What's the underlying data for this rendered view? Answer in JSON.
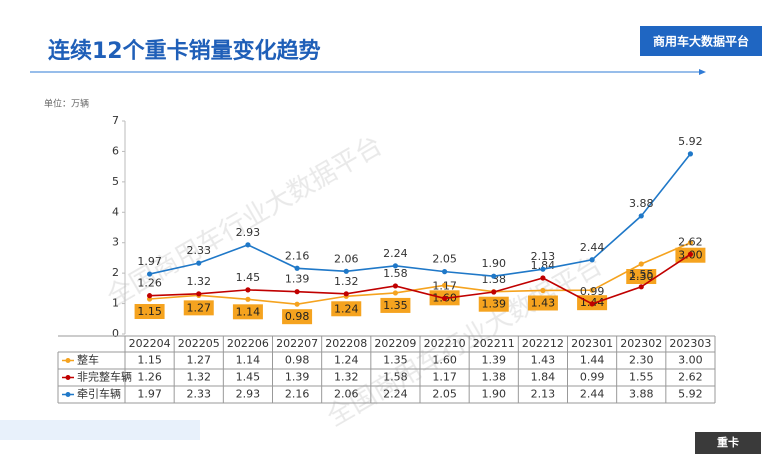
{
  "header": {
    "title": "连续12个重卡销量变化趋势",
    "badge": "商用车大数据平台",
    "footer": "重卡"
  },
  "chart_data": {
    "type": "line",
    "unit": "单位：万辆",
    "watermark": "全国商用车行业大数据平台",
    "categories": [
      "202204",
      "202205",
      "202206",
      "202207",
      "202208",
      "202209",
      "202210",
      "202211",
      "202212",
      "202301",
      "202302",
      "202303"
    ],
    "ylim": [
      0,
      7
    ],
    "yticks": [
      0,
      1,
      2,
      3,
      4,
      5,
      6,
      7
    ],
    "grid": false,
    "series": [
      {
        "name": "整车",
        "color": "#f5a31f",
        "values": [
          1.15,
          1.27,
          1.14,
          0.98,
          1.24,
          1.35,
          1.6,
          1.39,
          1.43,
          1.44,
          2.3,
          3.0
        ],
        "value_labels": [
          "1.15",
          "1.27",
          "1.14",
          "0.98",
          "1.24",
          "1.35",
          "1.60",
          "1.39",
          "1.43",
          "1.44",
          "2.30",
          "3.00"
        ]
      },
      {
        "name": "非完整车辆",
        "color": "#c00000",
        "values": [
          1.26,
          1.32,
          1.45,
          1.39,
          1.32,
          1.58,
          1.17,
          1.38,
          1.84,
          0.99,
          1.55,
          2.62
        ],
        "value_labels": [
          "1.26",
          "1.32",
          "1.45",
          "1.39",
          "1.32",
          "1.58",
          "1.17",
          "1.38",
          "1.84",
          "0.99",
          "1.55",
          "2.62"
        ]
      },
      {
        "name": "牵引车辆",
        "color": "#1f78c8",
        "values": [
          1.97,
          2.33,
          2.93,
          2.16,
          2.06,
          2.24,
          2.05,
          1.9,
          2.13,
          2.44,
          3.88,
          5.92
        ],
        "value_labels": [
          "1.97",
          "2.33",
          "2.93",
          "2.16",
          "2.06",
          "2.24",
          "2.05",
          "1.90",
          "2.13",
          "2.44",
          "3.88",
          "5.92"
        ]
      }
    ]
  }
}
